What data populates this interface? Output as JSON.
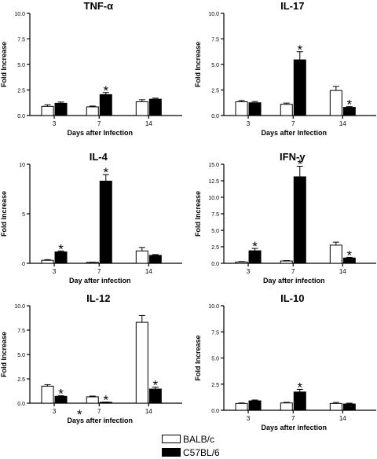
{
  "colors": {
    "balb": "#ffffff",
    "c57": "#000000",
    "stroke": "#000000"
  },
  "legend": [
    {
      "label": "BALB/c",
      "color": "#ffffff"
    },
    {
      "label": "C57BL/6",
      "color": "#000000"
    }
  ],
  "chart_data": [
    {
      "type": "bar",
      "title": "TNF-α",
      "xlabel": "Days after Infection",
      "ylabel": "Fold Increase",
      "ylim": [
        0,
        10
      ],
      "yticks": [
        "0.0",
        "2.5",
        "5.0",
        "7.5",
        "10.0"
      ],
      "categories": [
        "3",
        "7",
        "14"
      ],
      "series": [
        {
          "name": "BALB/c",
          "values": [
            0.9,
            0.85,
            1.35
          ],
          "errors": [
            0.15,
            0.08,
            0.2
          ]
        },
        {
          "name": "C57BL/6",
          "values": [
            1.2,
            2.05,
            1.6
          ],
          "errors": [
            0.12,
            0.2,
            0.1
          ]
        }
      ],
      "stars": [
        {
          "category": 1,
          "series": 1,
          "label": "*"
        }
      ]
    },
    {
      "type": "bar",
      "title": "IL-17",
      "xlabel": "Days after Infection",
      "ylabel": "Fold Increase",
      "ylim": [
        0,
        10
      ],
      "yticks": [
        "0.0",
        "2.5",
        "5.0",
        "7.5",
        "10.0"
      ],
      "categories": [
        "3",
        "7",
        "14"
      ],
      "series": [
        {
          "name": "BALB/c",
          "values": [
            1.35,
            1.1,
            2.45
          ],
          "errors": [
            0.12,
            0.12,
            0.4
          ]
        },
        {
          "name": "C57BL/6",
          "values": [
            1.25,
            5.45,
            0.8
          ],
          "errors": [
            0.12,
            0.8,
            0.07
          ]
        }
      ],
      "stars": [
        {
          "category": 1,
          "series": 1,
          "label": "*"
        },
        {
          "category": 2,
          "series": 1,
          "label": "*"
        }
      ]
    },
    {
      "type": "bar",
      "title": "IL-4",
      "xlabel": "Day after infection",
      "ylabel": "Fold Increase",
      "ylim": [
        0,
        10
      ],
      "yticks": [
        "0",
        "5",
        "10"
      ],
      "categories": [
        "3",
        "7",
        "14"
      ],
      "series": [
        {
          "name": "BALB/c",
          "values": [
            0.3,
            0.1,
            1.25
          ],
          "errors": [
            0.07,
            0.02,
            0.35
          ]
        },
        {
          "name": "C57BL/6",
          "values": [
            1.15,
            8.3,
            0.8
          ],
          "errors": [
            0.1,
            0.65,
            0.08
          ]
        }
      ],
      "stars": [
        {
          "category": 0,
          "series": 1,
          "label": "*"
        },
        {
          "category": 1,
          "series": 1,
          "label": "*"
        }
      ]
    },
    {
      "type": "bar",
      "title": "IFN-γ",
      "xlabel": "Day after infection",
      "ylabel": "Fold Increase",
      "ylim": [
        0,
        15
      ],
      "yticks": [
        "0.0",
        "2.5",
        "5.0",
        "7.5",
        "10.0",
        "12.5",
        "15.0"
      ],
      "categories": [
        "3",
        "7",
        "14"
      ],
      "series": [
        {
          "name": "BALB/c",
          "values": [
            0.2,
            0.35,
            2.75
          ],
          "errors": [
            0.06,
            0.06,
            0.45
          ]
        },
        {
          "name": "C57BL/6",
          "values": [
            1.9,
            13.1,
            0.8
          ],
          "errors": [
            0.35,
            1.6,
            0.1
          ]
        }
      ],
      "stars": [
        {
          "category": 0,
          "series": 1,
          "label": "*"
        },
        {
          "category": 1,
          "series": 1,
          "label": "*"
        },
        {
          "category": 2,
          "series": 1,
          "label": "*"
        }
      ]
    },
    {
      "type": "bar",
      "title": "IL-12",
      "xlabel": "Days after infection",
      "ylabel": "Fold Increase",
      "ylim": [
        0,
        10
      ],
      "yticks": [
        "0.0",
        "2.5",
        "5.0",
        "7.5",
        "10.0"
      ],
      "categories": [
        "3",
        "7",
        "14"
      ],
      "series": [
        {
          "name": "BALB/c",
          "values": [
            1.75,
            0.65,
            8.3
          ],
          "errors": [
            0.15,
            0.08,
            0.7
          ]
        },
        {
          "name": "C57BL/6",
          "values": [
            0.7,
            0.1,
            1.45
          ],
          "errors": [
            0.07,
            0.02,
            0.2
          ]
        }
      ],
      "stars": [
        {
          "category": 0,
          "series": 1,
          "label": "*"
        },
        {
          "category": 1,
          "series": 0,
          "label": "*",
          "side": "left"
        },
        {
          "category": 1,
          "series": 1,
          "label": "*"
        },
        {
          "category": 2,
          "series": 1,
          "label": "*"
        }
      ]
    },
    {
      "type": "bar",
      "title": "IL-10",
      "xlabel": "Days after infection",
      "ylabel": "Fold Increase",
      "ylim": [
        0,
        10
      ],
      "yticks": [
        "0.0",
        "2.5",
        "5.0",
        "7.5",
        "10.0"
      ],
      "categories": [
        "3",
        "7",
        "14"
      ],
      "series": [
        {
          "name": "BALB/c",
          "values": [
            0.65,
            0.7,
            0.65
          ],
          "errors": [
            0.05,
            0.06,
            0.1
          ]
        },
        {
          "name": "C57BL/6",
          "values": [
            0.9,
            1.75,
            0.6
          ],
          "errors": [
            0.08,
            0.25,
            0.08
          ]
        }
      ],
      "stars": [
        {
          "category": 1,
          "series": 1,
          "label": "*"
        }
      ]
    }
  ]
}
